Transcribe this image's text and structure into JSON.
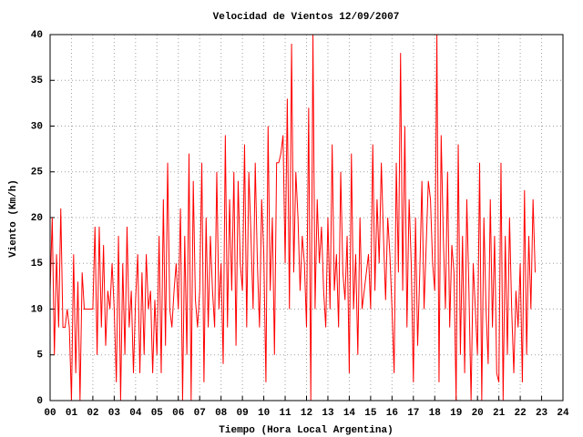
{
  "chart_data": {
    "type": "line",
    "title": "Velocidad de Vientos 12/09/2007",
    "x_label": "Tiempo (Hora Local Argentina)",
    "y_label": "Viento (Km/h)",
    "color": "#ff0000",
    "grid": true,
    "xlim": [
      0,
      24
    ],
    "ylim": [
      0,
      40
    ],
    "xticks": [
      {
        "value": 0,
        "label": "00"
      },
      {
        "value": 1,
        "label": "01"
      },
      {
        "value": 2,
        "label": "02"
      },
      {
        "value": 3,
        "label": "03"
      },
      {
        "value": 4,
        "label": "04"
      },
      {
        "value": 5,
        "label": "05"
      },
      {
        "value": 6,
        "label": "06"
      },
      {
        "value": 7,
        "label": "07"
      },
      {
        "value": 8,
        "label": "08"
      },
      {
        "value": 9,
        "label": "09"
      },
      {
        "value": 10,
        "label": "10"
      },
      {
        "value": 11,
        "label": "11"
      },
      {
        "value": 12,
        "label": "12"
      },
      {
        "value": 13,
        "label": "13"
      },
      {
        "value": 14,
        "label": "14"
      },
      {
        "value": 15,
        "label": "15"
      },
      {
        "value": 16,
        "label": "16"
      },
      {
        "value": 17,
        "label": "17"
      },
      {
        "value": 18,
        "label": "18"
      },
      {
        "value": 19,
        "label": "19"
      },
      {
        "value": 20,
        "label": "20"
      },
      {
        "value": 21,
        "label": "21"
      },
      {
        "value": 22,
        "label": "22"
      },
      {
        "value": 23,
        "label": "23"
      },
      {
        "value": 24,
        "label": "24"
      }
    ],
    "yticks": [
      0,
      5,
      10,
      15,
      20,
      25,
      30,
      35,
      40
    ],
    "x": [
      0,
      0.1,
      0.2,
      0.3,
      0.4,
      0.5,
      0.6,
      0.7,
      0.8,
      0.9,
      1,
      1.1,
      1.2,
      1.3,
      1.4,
      1.5,
      1.6,
      1.7,
      1.8,
      1.9,
      2,
      2.1,
      2.2,
      2.3,
      2.4,
      2.5,
      2.6,
      2.7,
      2.8,
      2.9,
      3,
      3.1,
      3.2,
      3.3,
      3.4,
      3.5,
      3.6,
      3.7,
      3.8,
      3.9,
      4,
      4.1,
      4.2,
      4.3,
      4.4,
      4.5,
      4.6,
      4.7,
      4.8,
      4.9,
      5,
      5.1,
      5.2,
      5.3,
      5.4,
      5.5,
      5.6,
      5.7,
      5.8,
      5.9,
      6,
      6.1,
      6.2,
      6.3,
      6.4,
      6.5,
      6.6,
      6.7,
      6.8,
      6.9,
      7,
      7.1,
      7.2,
      7.3,
      7.4,
      7.5,
      7.6,
      7.7,
      7.8,
      7.9,
      8,
      8.1,
      8.2,
      8.3,
      8.4,
      8.5,
      8.6,
      8.7,
      8.8,
      8.9,
      9,
      9.1,
      9.2,
      9.3,
      9.4,
      9.5,
      9.6,
      9.7,
      9.8,
      9.9,
      10,
      10.1,
      10.2,
      10.3,
      10.4,
      10.5,
      10.6,
      10.7,
      10.8,
      10.9,
      11,
      11.1,
      11.2,
      11.3,
      11.4,
      11.5,
      11.6,
      11.7,
      11.8,
      11.9,
      12,
      12.1,
      12.2,
      12.3,
      12.4,
      12.5,
      12.6,
      12.7,
      12.8,
      12.9,
      13,
      13.1,
      13.2,
      13.3,
      13.4,
      13.5,
      13.6,
      13.7,
      13.8,
      13.9,
      14,
      14.1,
      14.2,
      14.3,
      14.4,
      14.5,
      14.6,
      14.7,
      14.8,
      14.9,
      15,
      15.1,
      15.2,
      15.3,
      15.4,
      15.5,
      15.6,
      15.7,
      15.8,
      15.9,
      16,
      16.1,
      16.2,
      16.3,
      16.4,
      16.5,
      16.6,
      16.7,
      16.8,
      16.9,
      17,
      17.1,
      17.2,
      17.3,
      17.4,
      17.5,
      17.6,
      17.7,
      17.8,
      17.9,
      18,
      18.1,
      18.2,
      18.3,
      18.4,
      18.5,
      18.6,
      18.7,
      18.8,
      18.9,
      19,
      19.1,
      19.2,
      19.3,
      19.4,
      19.5,
      19.6,
      19.7,
      19.8,
      19.9,
      20,
      20.1,
      20.2,
      20.3,
      20.4,
      20.5,
      20.6,
      20.7,
      20.8,
      20.9,
      21,
      21.1,
      21.2,
      21.3,
      21.4,
      21.5,
      21.6,
      21.7,
      21.8,
      21.9,
      22,
      22.1,
      22.2,
      22.3,
      22.4,
      22.5,
      22.6,
      22.7
    ],
    "values": [
      12,
      20,
      5,
      16,
      8,
      21,
      8,
      8,
      10,
      8,
      0,
      16,
      3,
      13,
      0,
      14,
      10,
      10,
      10,
      10,
      10,
      19,
      5,
      19,
      8,
      17,
      6,
      12,
      10,
      15,
      10,
      2,
      18,
      0,
      15,
      5,
      19,
      8,
      12,
      3,
      11,
      16,
      3,
      14,
      5,
      16,
      10,
      12,
      3,
      11,
      5,
      18,
      3,
      22,
      6,
      26,
      10,
      8,
      12,
      15,
      10,
      21,
      0,
      18,
      5,
      27,
      0,
      24,
      11,
      8,
      12,
      26,
      2,
      20,
      8,
      18,
      12,
      8,
      25,
      10,
      15,
      4,
      29,
      8,
      22,
      12,
      25,
      6,
      24,
      15,
      12,
      28,
      8,
      25,
      18,
      10,
      26,
      15,
      8,
      22,
      16,
      2,
      30,
      12,
      20,
      5,
      26,
      26,
      27,
      29,
      15,
      33,
      10,
      39,
      14,
      25,
      20,
      12,
      18,
      15,
      8,
      32,
      0,
      40,
      10,
      22,
      15,
      19,
      12,
      8,
      20,
      10,
      28,
      12,
      16,
      8,
      25,
      14,
      11,
      18,
      3,
      27,
      10,
      16,
      5,
      20,
      10,
      12,
      14,
      16,
      10,
      28,
      12,
      22,
      15,
      26,
      18,
      11,
      20,
      16,
      10,
      3,
      26,
      14,
      38,
      12,
      30,
      8,
      22,
      15,
      2,
      20,
      6,
      14,
      24,
      10,
      17,
      24,
      22,
      15,
      12,
      40,
      2,
      29,
      18,
      10,
      25,
      8,
      17,
      14,
      0,
      28,
      5,
      18,
      3,
      22,
      12,
      0,
      15,
      10,
      5,
      26,
      0,
      20,
      10,
      4,
      22,
      8,
      18,
      3,
      2,
      26,
      0,
      18,
      5,
      20,
      10,
      3,
      12,
      8,
      15,
      2,
      23,
      5,
      18,
      10,
      22,
      14
    ]
  }
}
